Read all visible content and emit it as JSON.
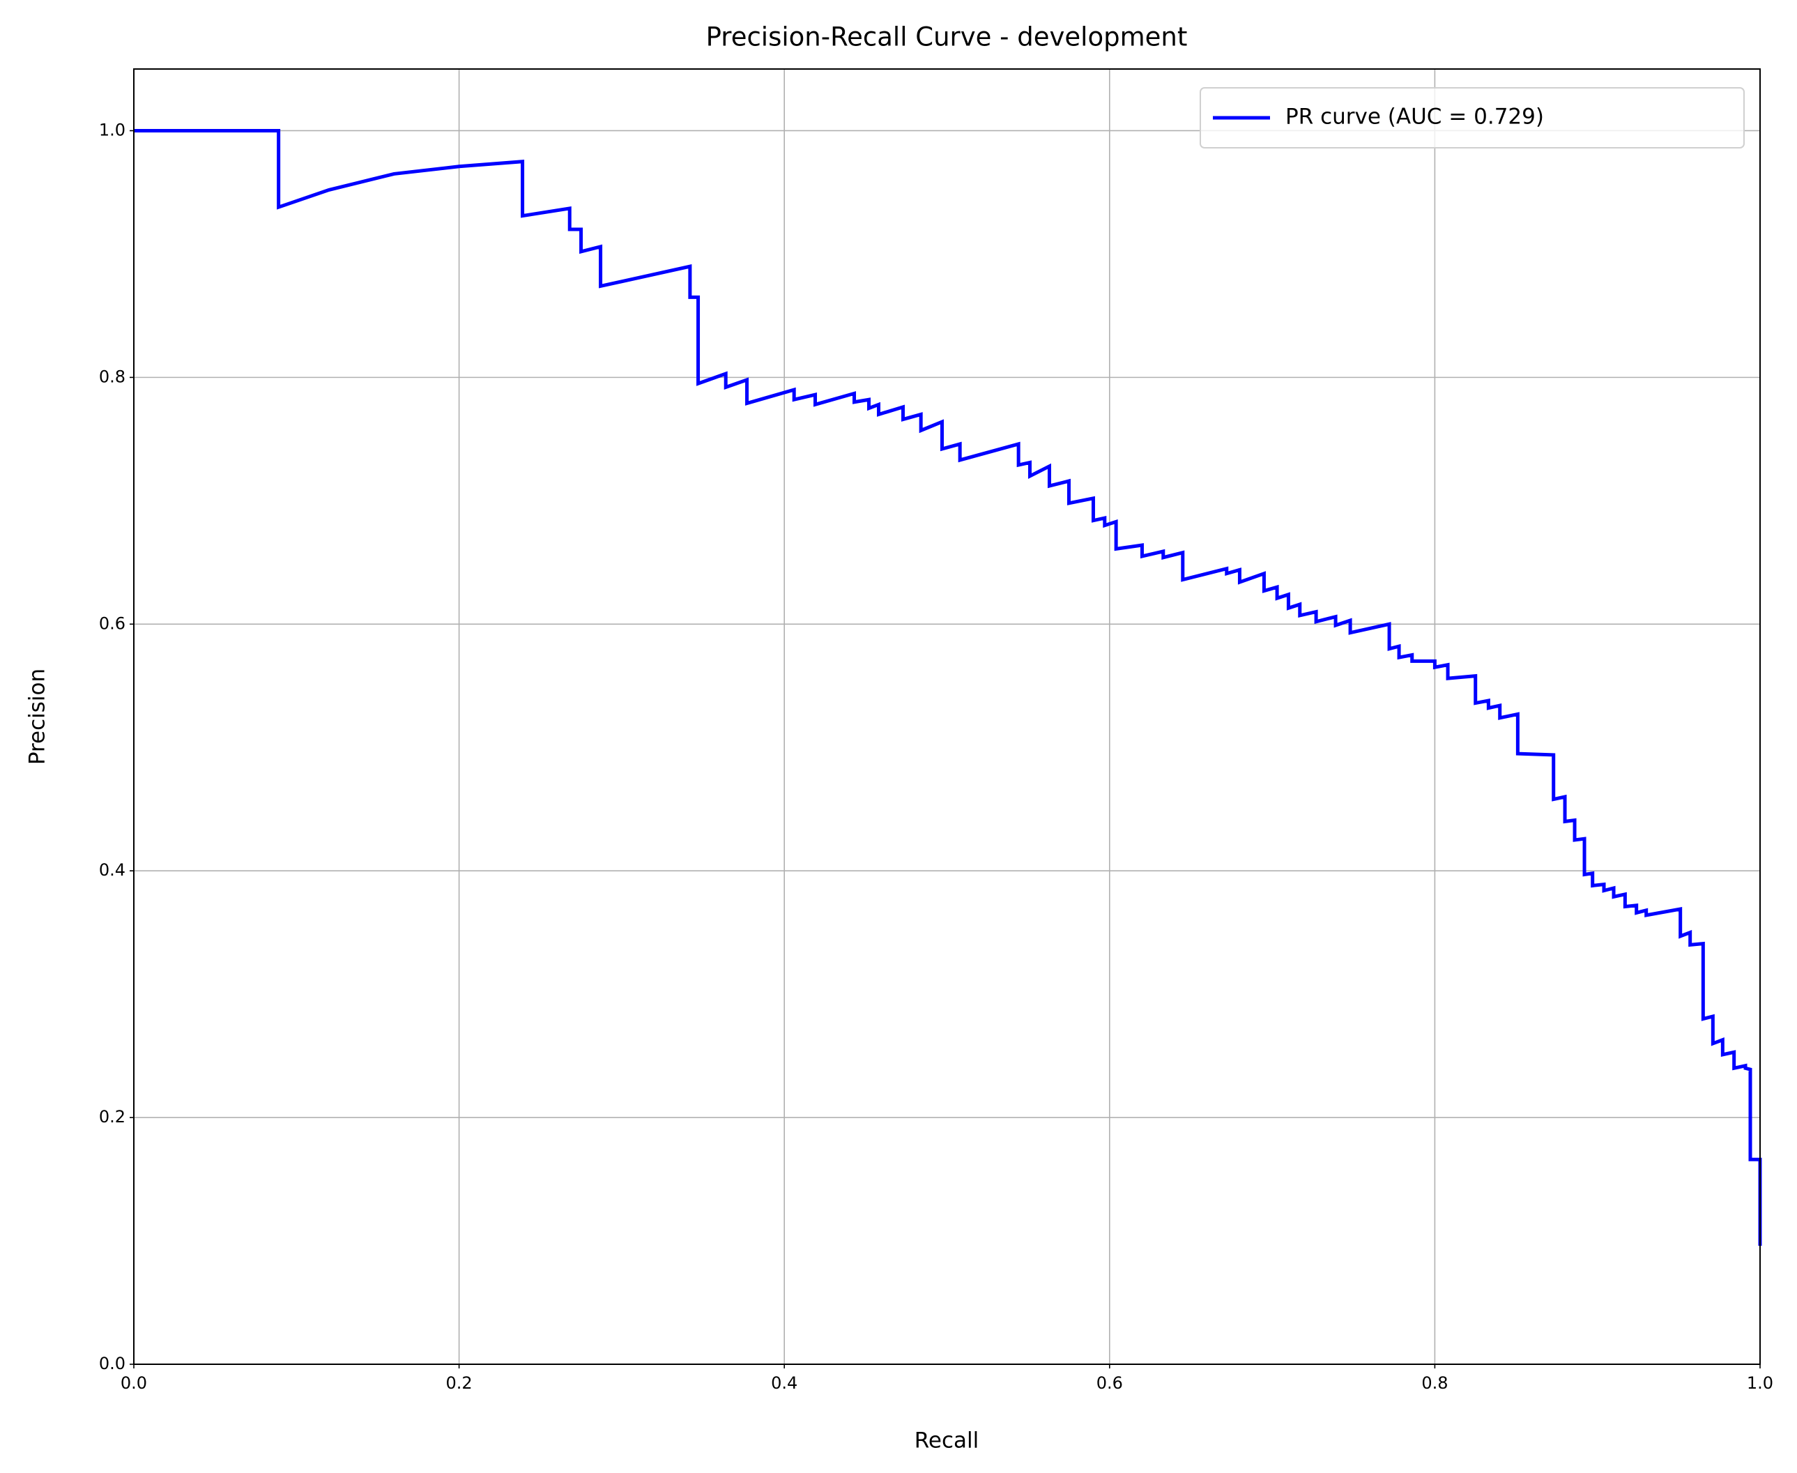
{
  "chart_data": {
    "type": "line",
    "title": "Precision-Recall Curve - development",
    "xlabel": "Recall",
    "ylabel": "Precision",
    "xlim": [
      0,
      1
    ],
    "ylim": [
      0,
      1.05
    ],
    "xticks": [
      {
        "value": 0,
        "label": "0.0"
      },
      0.2,
      0.4,
      0.6,
      0.8,
      {
        "value": 1,
        "label": "1.0"
      }
    ],
    "yticks": [
      {
        "value": 0,
        "label": "0.0"
      },
      0.2,
      0.4,
      0.6,
      0.8,
      {
        "value": 1,
        "label": "1.0"
      }
    ],
    "grid": true,
    "legend": "upper right",
    "x": [
      0,
      0.089,
      0.089,
      0.12,
      0.16,
      0.2,
      0.239,
      0.239,
      0.268,
      0.268,
      0.275,
      0.275,
      0.287,
      0.287,
      0.342,
      0.342,
      0.347,
      0.347,
      0.364,
      0.364,
      0.377,
      0.377,
      0.406,
      0.406,
      0.419,
      0.419,
      0.443,
      0.443,
      0.452,
      0.452,
      0.458,
      0.458,
      0.473,
      0.473,
      0.484,
      0.484,
      0.497,
      0.497,
      0.508,
      0.508,
      0.544,
      0.544,
      0.551,
      0.551,
      0.563,
      0.563,
      0.575,
      0.575,
      0.59,
      0.59,
      0.597,
      0.597,
      0.604,
      0.604,
      0.62,
      0.62,
      0.633,
      0.633,
      0.645,
      0.645,
      0.672,
      0.672,
      0.68,
      0.68,
      0.695,
      0.695,
      0.703,
      0.703,
      0.71,
      0.71,
      0.717,
      0.717,
      0.727,
      0.727,
      0.739,
      0.739,
      0.748,
      0.748,
      0.772,
      0.772,
      0.778,
      0.778,
      0.786,
      0.786,
      0.8,
      0.8,
      0.808,
      0.808,
      0.825,
      0.825,
      0.833,
      0.833,
      0.84,
      0.84,
      0.851,
      0.851,
      0.873,
      0.873,
      0.88,
      0.88,
      0.886,
      0.886,
      0.892,
      0.892,
      0.897,
      0.897,
      0.904,
      0.904,
      0.91,
      0.91,
      0.917,
      0.917,
      0.924,
      0.924,
      0.93,
      0.93,
      0.951,
      0.951,
      0.957,
      0.957,
      0.965,
      0.965,
      0.971,
      0.971,
      0.977,
      0.977,
      0.984,
      0.984,
      0.991,
      0.991,
      0.994,
      0.994,
      1,
      1
    ],
    "series": [
      {
        "name": "PR curve (AUC = 0.729)",
        "color": "#0000ff",
        "values": [
          1,
          1,
          0.938,
          0.952,
          0.965,
          0.971,
          0.975,
          0.931,
          0.937,
          0.92,
          0.92,
          0.902,
          0.906,
          0.874,
          0.89,
          0.865,
          0.865,
          0.795,
          0.803,
          0.792,
          0.798,
          0.779,
          0.79,
          0.782,
          0.786,
          0.778,
          0.787,
          0.78,
          0.782,
          0.775,
          0.778,
          0.77,
          0.776,
          0.766,
          0.77,
          0.757,
          0.764,
          0.742,
          0.746,
          0.733,
          0.746,
          0.729,
          0.731,
          0.72,
          0.728,
          0.712,
          0.716,
          0.698,
          0.702,
          0.684,
          0.686,
          0.68,
          0.683,
          0.661,
          0.664,
          0.655,
          0.659,
          0.654,
          0.658,
          0.636,
          0.645,
          0.641,
          0.644,
          0.634,
          0.641,
          0.627,
          0.63,
          0.621,
          0.624,
          0.613,
          0.616,
          0.607,
          0.61,
          0.602,
          0.606,
          0.599,
          0.603,
          0.593,
          0.6,
          0.58,
          0.582,
          0.573,
          0.575,
          0.57,
          0.57,
          0.565,
          0.567,
          0.556,
          0.558,
          0.536,
          0.538,
          0.532,
          0.534,
          0.524,
          0.527,
          0.495,
          0.494,
          0.458,
          0.46,
          0.44,
          0.441,
          0.425,
          0.426,
          0.397,
          0.398,
          0.388,
          0.389,
          0.384,
          0.386,
          0.379,
          0.381,
          0.371,
          0.372,
          0.366,
          0.368,
          0.364,
          0.369,
          0.347,
          0.35,
          0.34,
          0.341,
          0.28,
          0.282,
          0.26,
          0.263,
          0.251,
          0.253,
          0.24,
          0.242,
          0.24,
          0.239,
          0.166,
          0.166,
          0.096
        ]
      }
    ]
  }
}
